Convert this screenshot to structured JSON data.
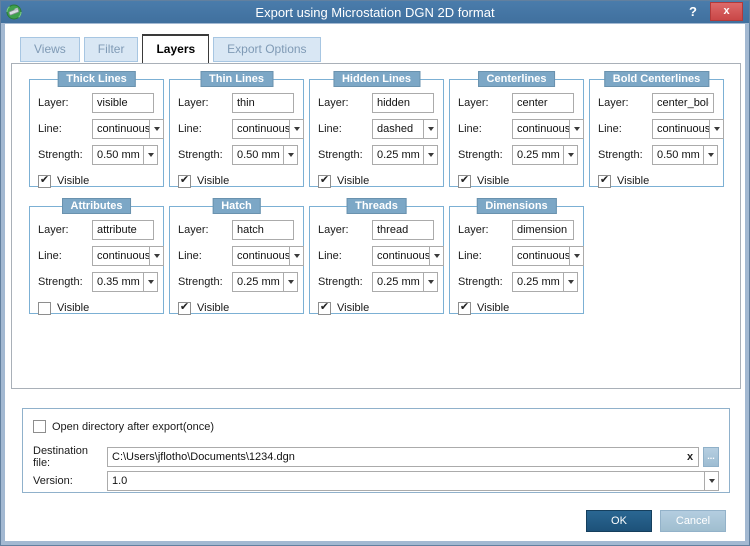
{
  "window": {
    "title": "Export using Microstation DGN 2D format",
    "help_label": "?",
    "close_label": "x"
  },
  "tabs": [
    {
      "label": "Views",
      "active": false
    },
    {
      "label": "Filter",
      "active": false
    },
    {
      "label": "Layers",
      "active": true
    },
    {
      "label": "Export Options",
      "active": false
    }
  ],
  "field_labels": {
    "layer": "Layer:",
    "line": "Line:",
    "strength": "Strength:",
    "visible": "Visible"
  },
  "groups": [
    {
      "title": "Thick Lines",
      "layer": "visible",
      "line": "continuous",
      "strength": "0.50 mm",
      "visible": true,
      "row": 1
    },
    {
      "title": "Thin Lines",
      "layer": "thin",
      "line": "continuous",
      "strength": "0.50 mm",
      "visible": true,
      "row": 1
    },
    {
      "title": "Hidden Lines",
      "layer": "hidden",
      "line": "dashed",
      "strength": "0.25 mm",
      "visible": true,
      "row": 1
    },
    {
      "title": "Centerlines",
      "layer": "center",
      "line": "continuous",
      "strength": "0.25 mm",
      "visible": true,
      "row": 1
    },
    {
      "title": "Bold Centerlines",
      "layer": "center_bold",
      "line": "continuous",
      "strength": "0.50 mm",
      "visible": true,
      "row": 1
    },
    {
      "title": "Attributes",
      "layer": "attribute",
      "line": "continuous",
      "strength": "0.35 mm",
      "visible": false,
      "row": 2
    },
    {
      "title": "Hatch",
      "layer": "hatch",
      "line": "continuous",
      "strength": "0.25 mm",
      "visible": true,
      "row": 2
    },
    {
      "title": "Threads",
      "layer": "thread",
      "line": "continuous",
      "strength": "0.25 mm",
      "visible": true,
      "row": 2
    },
    {
      "title": "Dimensions",
      "layer": "dimension",
      "line": "continuous",
      "strength": "0.25 mm",
      "visible": true,
      "row": 2
    }
  ],
  "bottom_panel": {
    "open_dir_label": "Open directory after export(once)",
    "open_dir_checked": false,
    "destination_label": "Destination file:",
    "destination_value": "C:\\Users\\jflotho\\Documents\\1234.dgn",
    "clear_label": "x",
    "browse_label": "...",
    "version_label": "Version:",
    "version_value": "1.0"
  },
  "buttons": {
    "ok": "OK",
    "cancel": "Cancel"
  },
  "colors": {
    "titlebar": "#44739f",
    "group_header": "#7ca7c6",
    "group_border": "#7cb0d4",
    "ok_button": "#1d5179",
    "cancel_button": "#a0becf",
    "close_button": "#c94747"
  }
}
